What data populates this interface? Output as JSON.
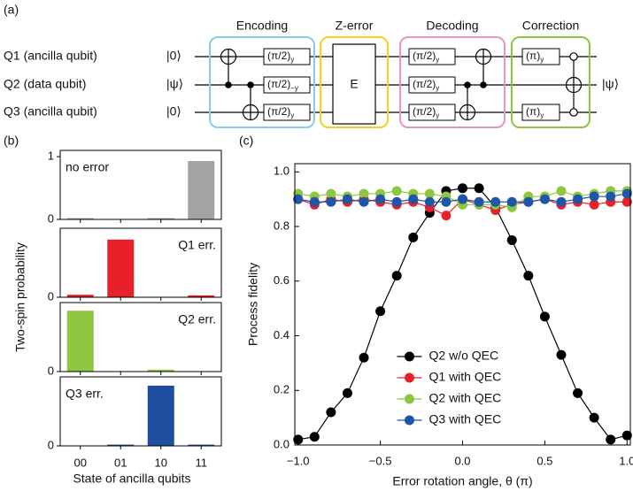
{
  "panel_labels": [
    "(a)",
    "(b)",
    "(c)"
  ],
  "circuit": {
    "blocks": [
      "Encoding",
      "Z-error",
      "Decoding",
      "Correction"
    ],
    "qubits": [
      "Q1 (ancilla qubit)",
      "Q2 (data qubit)",
      "Q3 (ancilla qubit)"
    ],
    "inputs": [
      "|0⟩",
      "|ψ⟩",
      "|0⟩"
    ],
    "output": "|ψ⟩",
    "error_gate": "E",
    "rotations": [
      {
        "text": "(π/2)",
        "sub": "y"
      },
      {
        "text": "(π/2)",
        "sub": "−y"
      },
      {
        "text": "(π/2)",
        "sub": "y"
      },
      {
        "text": "(π/2)",
        "sub": "y"
      },
      {
        "text": "(π/2)",
        "sub": "y"
      },
      {
        "text": "(π/2)",
        "sub": "y"
      },
      {
        "text": "(π)",
        "sub": "y"
      },
      {
        "text": "(π)",
        "sub": "y"
      }
    ]
  },
  "chart_data": [
    {
      "type": "bar",
      "annotation": "no error",
      "categories": [
        null,
        null,
        null,
        null
      ],
      "values": [
        0.02,
        0.005,
        0.02,
        0.93
      ],
      "color": "#a3a3a3",
      "ylim": [
        0,
        1.1
      ],
      "yticks": [
        0,
        1
      ]
    },
    {
      "type": "bar",
      "annotation": "Q1 err.",
      "categories": [
        null,
        null,
        null,
        null
      ],
      "values": [
        0.04,
        0.92,
        0.0,
        0.03
      ],
      "color": "#e8202a",
      "ylim": [
        0,
        1.1
      ],
      "yticks": [
        0
      ]
    },
    {
      "type": "bar",
      "annotation": "Q2 err.",
      "categories": [
        null,
        null,
        null,
        null
      ],
      "values": [
        0.97,
        0.0,
        0.03,
        0.0
      ],
      "color": "#8dc63f",
      "ylim": [
        0,
        1.1
      ],
      "yticks": [
        0
      ]
    },
    {
      "type": "bar",
      "annotation": "Q3 err.",
      "categories": [
        "00",
        "01",
        "10",
        "11"
      ],
      "values": [
        0.0,
        0.02,
        0.96,
        0.02
      ],
      "color": "#1f4e9e",
      "ylim": [
        0,
        1.1
      ],
      "yticks": [
        0
      ],
      "x_label": "State of ancilla qubits",
      "y_label": "Two-spin probability"
    },
    {
      "type": "line",
      "x_label": "Error rotation angle, θ (π)",
      "y_label": "Process fidelity",
      "xlim": [
        -1.02,
        1.02
      ],
      "ylim": [
        0,
        1.03
      ],
      "xticks": [
        {
          "value": -1,
          "label": "−1.0"
        },
        {
          "value": -0.5,
          "label": "−0.5"
        },
        {
          "value": 0,
          "label": "0.0"
        },
        {
          "value": 0.5,
          "label": "0.5"
        },
        {
          "value": 1,
          "label": "1.0"
        }
      ],
      "yticks": [
        {
          "value": 0,
          "label": "0.0"
        },
        0.2,
        0.4,
        0.6,
        0.8,
        {
          "value": 1,
          "label": "1.0"
        }
      ],
      "legend": "lower center",
      "x": [
        -1.0,
        -0.9,
        -0.8,
        -0.7,
        -0.6,
        -0.5,
        -0.4,
        -0.3,
        -0.2,
        -0.1,
        0.0,
        0.1,
        0.2,
        0.3,
        0.4,
        0.5,
        0.6,
        0.7,
        0.8,
        0.9,
        1.0
      ],
      "series": [
        {
          "name": "Q2 w/o QEC",
          "color": "#000000",
          "values": [
            0.02,
            0.03,
            0.12,
            0.19,
            0.32,
            0.49,
            0.62,
            0.76,
            0.85,
            0.93,
            0.94,
            0.94,
            0.87,
            0.75,
            0.62,
            0.47,
            0.33,
            0.19,
            0.1,
            0.02,
            0.035
          ]
        },
        {
          "name": "Q1 with QEC",
          "color": "#e8202a",
          "values": [
            0.9,
            0.88,
            0.9,
            0.89,
            0.9,
            0.89,
            0.88,
            0.89,
            0.87,
            0.84,
            0.9,
            0.88,
            0.86,
            0.88,
            0.89,
            0.9,
            0.88,
            0.89,
            0.88,
            0.89,
            0.89
          ]
        },
        {
          "name": "Q2 with QEC",
          "color": "#8dc63f",
          "values": [
            0.92,
            0.91,
            0.92,
            0.91,
            0.92,
            0.92,
            0.93,
            0.92,
            0.92,
            0.91,
            0.88,
            0.88,
            0.88,
            0.87,
            0.91,
            0.91,
            0.93,
            0.91,
            0.92,
            0.93,
            0.93
          ]
        },
        {
          "name": "Q3 with QEC",
          "color": "#1f56a8",
          "values": [
            0.9,
            0.89,
            0.89,
            0.9,
            0.89,
            0.9,
            0.89,
            0.9,
            0.89,
            0.89,
            0.9,
            0.89,
            0.89,
            0.89,
            0.89,
            0.9,
            0.89,
            0.9,
            0.91,
            0.91,
            0.92
          ]
        }
      ]
    }
  ]
}
